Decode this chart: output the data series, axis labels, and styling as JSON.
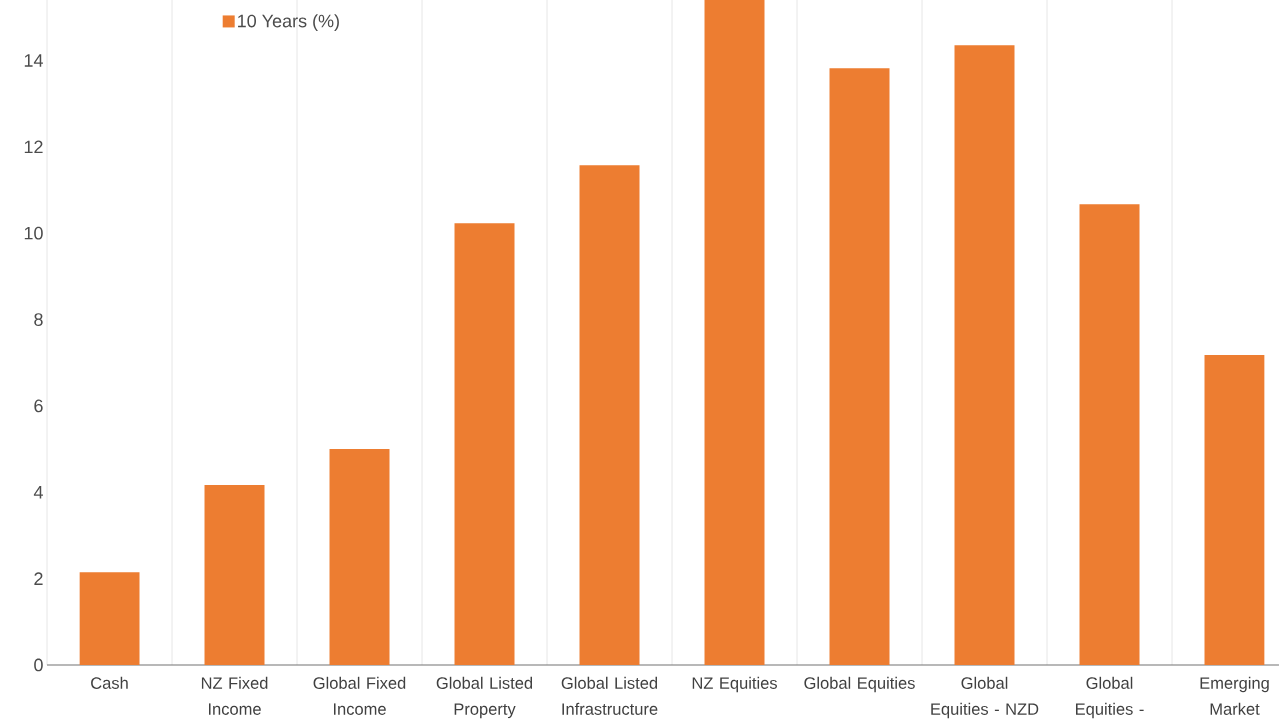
{
  "chart_data": {
    "type": "bar",
    "categories": [
      "Cash",
      "NZ Fixed Income",
      "Global Fixed Income",
      "Global Listed Property",
      "Global Listed Infrastructure",
      "NZ Equities",
      "Global Equities",
      "Global Equities - NZD",
      "Global Equities -",
      "Emerging Market"
    ],
    "series": [
      {
        "name": "10 Years (%)",
        "color": "#ed7d31",
        "values": [
          2.15,
          4.17,
          5.0,
          10.23,
          11.57,
          15.4,
          13.82,
          14.35,
          10.67,
          7.18
        ]
      }
    ],
    "ylim": [
      0,
      15.4
    ],
    "yticks": [
      0,
      2,
      4,
      6,
      8,
      10,
      12,
      14
    ],
    "grid": "x",
    "legend": "top left"
  }
}
